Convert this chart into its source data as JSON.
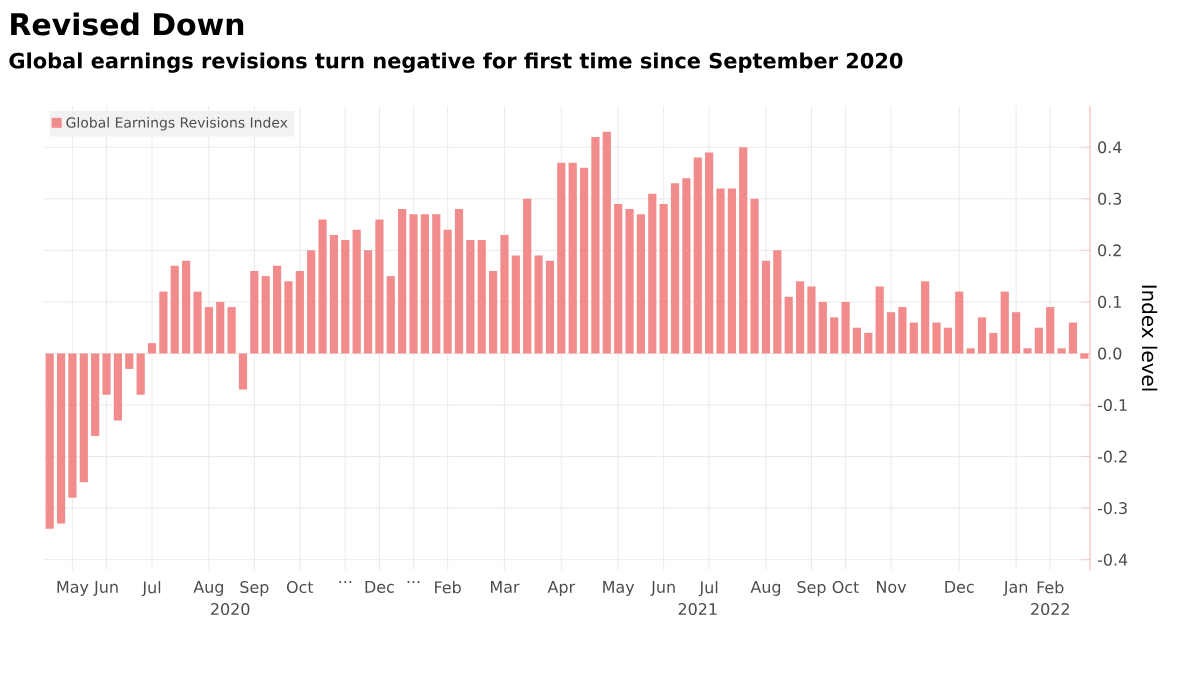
{
  "chart_data": {
    "type": "bar",
    "title": "Revised Down",
    "subtitle": "Global earnings revisions turn negative for first time since September 2020",
    "ylabel": "Index level",
    "categories": [
      null,
      null,
      "May",
      null,
      null,
      "Jun",
      null,
      null,
      null,
      "Jul",
      null,
      null,
      null,
      null,
      "Aug",
      null,
      null,
      null,
      "Sep",
      null,
      null,
      null,
      "Oct",
      null,
      null,
      null,
      "...",
      null,
      null,
      "Dec",
      null,
      null,
      "...",
      null,
      null,
      "Feb",
      null,
      null,
      null,
      null,
      "Mar",
      null,
      null,
      null,
      null,
      "Apr",
      null,
      null,
      null,
      null,
      "May",
      null,
      null,
      null,
      "Jun",
      null,
      null,
      null,
      "Jul",
      null,
      null,
      null,
      null,
      "Aug",
      null,
      null,
      null,
      "Sep",
      null,
      null,
      "Oct",
      null,
      null,
      null,
      "Nov",
      null,
      null,
      null,
      null,
      null,
      "Dec",
      null,
      null,
      null,
      null,
      "Jan",
      null,
      null,
      "Feb",
      null,
      null,
      null
    ],
    "series": [
      {
        "name": "Global Earnings Revisions Index",
        "color": "#f28b8b",
        "values": [
          -0.34,
          -0.33,
          -0.28,
          -0.25,
          -0.16,
          -0.08,
          -0.13,
          -0.03,
          -0.08,
          0.02,
          0.12,
          0.17,
          0.18,
          0.12,
          0.09,
          0.1,
          0.09,
          -0.07,
          0.16,
          0.15,
          0.17,
          0.14,
          0.16,
          0.2,
          0.26,
          0.23,
          0.22,
          0.24,
          0.2,
          0.26,
          0.15,
          0.28,
          0.27,
          0.27,
          0.27,
          0.24,
          0.28,
          0.22,
          0.22,
          0.16,
          0.23,
          0.19,
          0.3,
          0.19,
          0.18,
          0.37,
          0.37,
          0.36,
          0.42,
          0.43,
          0.29,
          0.28,
          0.27,
          0.31,
          0.29,
          0.33,
          0.34,
          0.38,
          0.39,
          0.32,
          0.32,
          0.4,
          0.3,
          0.18,
          0.2,
          0.11,
          0.14,
          0.13,
          0.1,
          0.07,
          0.1,
          0.05,
          0.04,
          0.13,
          0.08,
          0.09,
          0.06,
          0.14,
          0.06,
          0.05,
          0.12,
          0.01,
          0.07,
          0.04,
          0.12,
          0.08,
          0.01,
          0.05,
          0.09,
          0.01,
          0.06,
          -0.01
        ]
      }
    ],
    "ylim": [
      -0.42,
      0.48
    ],
    "yticks": [
      {
        "value": -0.4,
        "label": "-0.4"
      },
      {
        "value": -0.3,
        "label": "-0.3"
      },
      {
        "value": -0.2,
        "label": "-0.2"
      },
      {
        "value": -0.1,
        "label": "-0.1"
      },
      {
        "value": 0,
        "label": "0.0"
      },
      {
        "value": 0.1,
        "label": "0.1"
      },
      {
        "value": 0.2,
        "label": "0.2"
      },
      {
        "value": 0.3,
        "label": "0.3"
      },
      {
        "value": 0.4,
        "label": "0.4"
      }
    ],
    "grid": true,
    "legend": "top left",
    "annotations": [
      "2020",
      "2021",
      "2022"
    ]
  }
}
